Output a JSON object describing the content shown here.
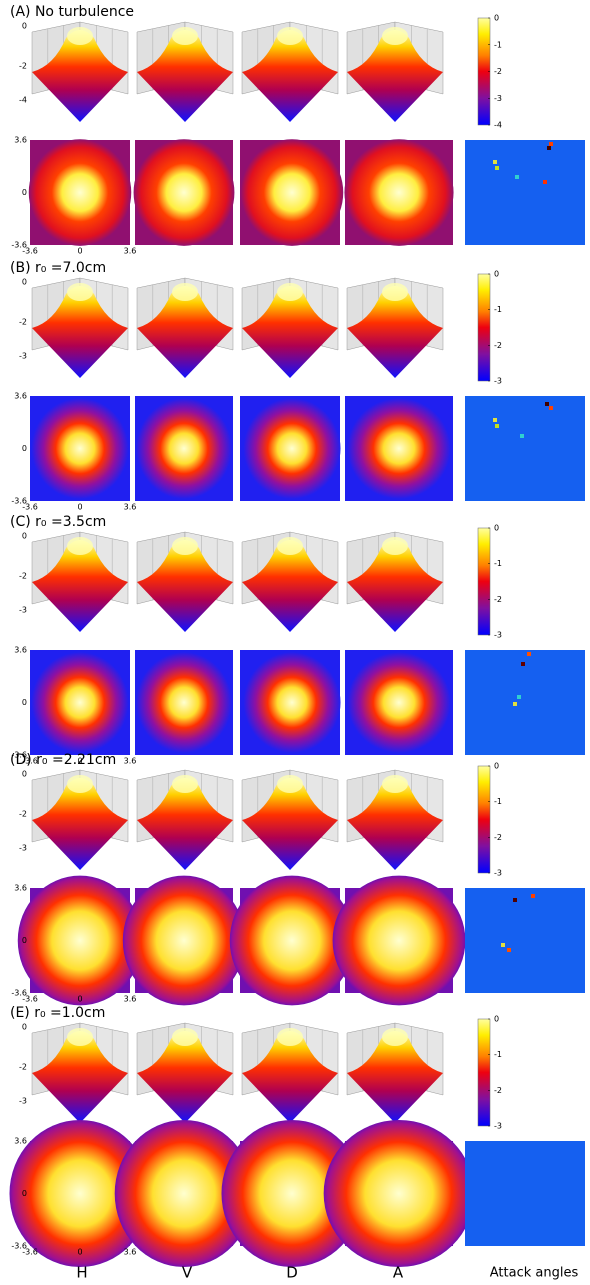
{
  "panels": [
    {
      "label": "(A) No turbulence",
      "z_ticks": [
        "0",
        "-2",
        "-4"
      ],
      "colorbar_ticks": [
        "0",
        "-1",
        "-2",
        "-3",
        "-4"
      ],
      "map_y_ticks": [
        "3.6",
        "0",
        "-3.6"
      ],
      "map_x_ticks": [
        "-3.6",
        "0",
        "3.6"
      ]
    },
    {
      "label": "(B) r₀ =7.0cm",
      "z_ticks": [
        "0",
        "-2",
        "-3"
      ],
      "colorbar_ticks": [
        "0",
        "-1",
        "-2",
        "-3"
      ],
      "map_y_ticks": [
        "3.6",
        "0",
        "-3.6"
      ],
      "map_x_ticks": [
        "-3.6",
        "0",
        "3.6"
      ]
    },
    {
      "label": "(C) r₀ =3.5cm",
      "z_ticks": [
        "0",
        "-2",
        "-3"
      ],
      "colorbar_ticks": [
        "0",
        "-1",
        "-2",
        "-3"
      ],
      "map_y_ticks": [
        "3.6",
        "0",
        "-3.6"
      ],
      "map_x_ticks": [
        "-3.6",
        "0",
        "3.6"
      ]
    },
    {
      "label": "(D) r₀ =2.21cm",
      "z_ticks": [
        "0",
        "-2",
        "-3"
      ],
      "colorbar_ticks": [
        "0",
        "-1",
        "-2",
        "-3"
      ],
      "map_y_ticks": [
        "3.6",
        "0",
        "-3.6"
      ],
      "map_x_ticks": [
        "-3.6",
        "0",
        "3.6"
      ]
    },
    {
      "label": "(E) r₀ =1.0cm",
      "z_ticks": [
        "0",
        "-2",
        "-3"
      ],
      "colorbar_ticks": [
        "0",
        "-1",
        "-2",
        "-3"
      ],
      "map_y_ticks": [
        "3.6",
        "0",
        "-3.6"
      ],
      "map_x_ticks": [
        "-3.6",
        "0",
        "3.6"
      ]
    }
  ],
  "column_labels": [
    "H",
    "V",
    "D",
    "A",
    "Attack angles"
  ]
}
